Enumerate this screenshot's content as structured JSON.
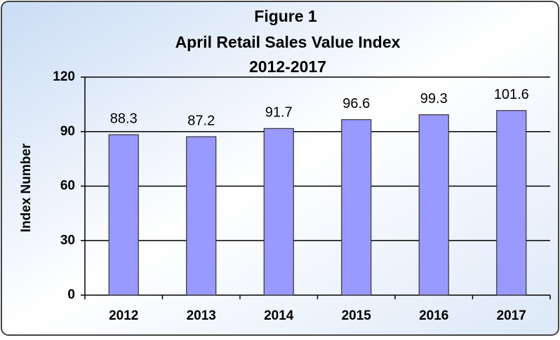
{
  "chart_data": {
    "type": "bar",
    "title": [
      "Figure 1",
      "April Retail Sales Value Index",
      "2012-2017"
    ],
    "y_label": "Index Number",
    "categories": [
      "2012",
      "2013",
      "2014",
      "2015",
      "2016",
      "2017"
    ],
    "values": [
      88.3,
      87.2,
      91.7,
      96.6,
      99.3,
      101.6
    ],
    "color": "#9999ff",
    "ylim": [
      0,
      120
    ],
    "yticks": [
      0,
      30,
      60,
      90,
      120
    ],
    "grid": true
  }
}
